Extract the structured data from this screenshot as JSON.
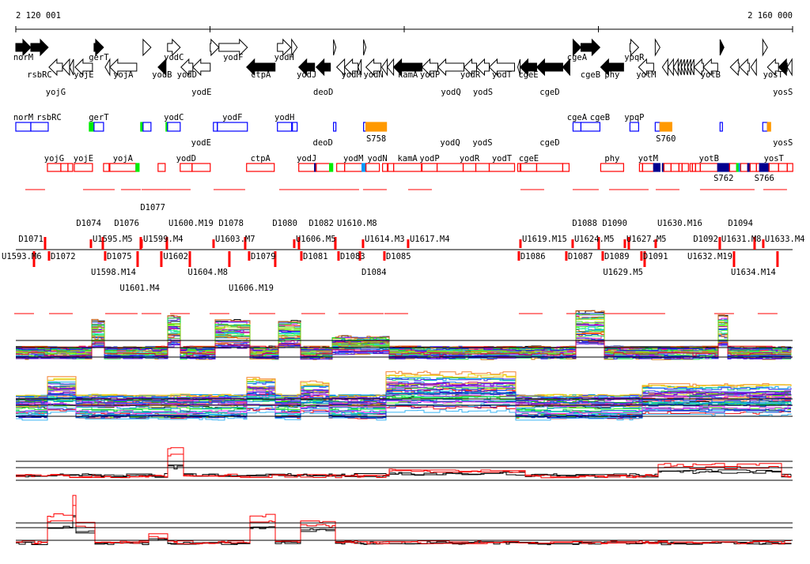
{
  "ruler": {
    "start_label": "2 120 001",
    "end_label": "2 160 000",
    "start": 2120001,
    "end": 2160000,
    "tick_step": 10000
  },
  "colors": {
    "blue_box": "#0000ff",
    "red_box": "#ff0000",
    "green": "#00ee00",
    "orange": "#ff9900",
    "navy": "#000090",
    "light_blue": "#0099ff",
    "probe": "#ff0000"
  },
  "genes": [
    {
      "name": "norM",
      "start": 2120000,
      "end": 2120773,
      "strand": "+",
      "filled": true
    },
    {
      "name": "rsbRC",
      "start": 2120773,
      "end": 2121669,
      "strand": "+",
      "filled": true
    },
    {
      "name": "gerT",
      "start": 2124029,
      "end": 2124518,
      "strand": "+",
      "filled": true
    },
    {
      "name": "",
      "start": 2126553,
      "end": 2126960,
      "strand": "+",
      "filled": false
    },
    {
      "name": "yodC",
      "start": 2127814,
      "end": 2128466,
      "strand": "+",
      "filled": false
    },
    {
      "name": "",
      "start": 2130012,
      "end": 2130460,
      "strand": "+",
      "filled": false
    },
    {
      "name": "yodF",
      "start": 2130460,
      "end": 2131925,
      "strand": "+",
      "filled": false
    },
    {
      "name": "yodH",
      "start": 2133472,
      "end": 2134164,
      "strand": "+",
      "filled": false
    },
    {
      "name": "",
      "start": 2134204,
      "end": 2134489,
      "strand": "+",
      "filled": false
    },
    {
      "name": "",
      "start": 2136361,
      "end": 2136484,
      "strand": "+",
      "filled": false
    },
    {
      "name": "",
      "start": 2137908,
      "end": 2138030,
      "strand": "+",
      "filled": false
    },
    {
      "name": "cgeA",
      "start": 2148694,
      "end": 2149101,
      "strand": "+",
      "filled": true
    },
    {
      "name": "cgeB",
      "start": 2149101,
      "end": 2150077,
      "strand": "+",
      "filled": true
    },
    {
      "name": "ypqR",
      "start": 2151624,
      "end": 2152072,
      "strand": "+",
      "filled": false
    },
    {
      "name": "",
      "start": 2152926,
      "end": 2153171,
      "strand": "+",
      "filled": false
    },
    {
      "name": "",
      "start": 2156264,
      "end": 2156467,
      "strand": "+",
      "filled": true
    },
    {
      "name": "",
      "start": 2158462,
      "end": 2158706,
      "strand": "+",
      "filled": false
    },
    {
      "name": "yojG",
      "start": 2121709,
      "end": 2122401,
      "strand": "-",
      "filled": false
    },
    {
      "name": "",
      "start": 2122401,
      "end": 2122768,
      "strand": "-",
      "filled": false
    },
    {
      "name": "",
      "start": 2122768,
      "end": 2122971,
      "strand": "-",
      "filled": false
    },
    {
      "name": "yojE",
      "start": 2123052,
      "end": 2123948,
      "strand": "-",
      "filled": false
    },
    {
      "name": "",
      "start": 2124599,
      "end": 2124843,
      "strand": "-",
      "filled": false
    },
    {
      "name": "yojA",
      "start": 2124843,
      "end": 2126227,
      "strand": "-",
      "filled": false
    },
    {
      "name": "yodB",
      "start": 2127326,
      "end": 2127733,
      "strand": "-",
      "filled": true
    },
    {
      "name": "yodD",
      "start": 2128506,
      "end": 2129117,
      "strand": "-",
      "filled": false
    },
    {
      "name": "yodE",
      "start": 2129117,
      "end": 2130012,
      "strand": "-",
      "filled": false
    },
    {
      "name": "ctpA",
      "start": 2131884,
      "end": 2133350,
      "strand": "-",
      "filled": true
    },
    {
      "name": "yodJ",
      "start": 2134571,
      "end": 2135385,
      "strand": "-",
      "filled": true
    },
    {
      "name": "deoD",
      "start": 2135466,
      "end": 2136199,
      "strand": "-",
      "filled": true
    },
    {
      "name": "",
      "start": 2136524,
      "end": 2136931,
      "strand": "-",
      "filled": false
    },
    {
      "name": "yodM",
      "start": 2136931,
      "end": 2137623,
      "strand": "-",
      "filled": false
    },
    {
      "name": "",
      "start": 2137623,
      "end": 2137786,
      "strand": "-",
      "filled": false
    },
    {
      "name": "yodN",
      "start": 2138030,
      "end": 2138803,
      "strand": "-",
      "filled": false
    },
    {
      "name": "",
      "start": 2138844,
      "end": 2139129,
      "strand": "-",
      "filled": false
    },
    {
      "name": "",
      "start": 2139129,
      "end": 2139455,
      "strand": "-",
      "filled": false
    },
    {
      "name": "kamA",
      "start": 2139455,
      "end": 2140920,
      "strand": "-",
      "filled": true
    },
    {
      "name": "yodP",
      "start": 2140920,
      "end": 2141734,
      "strand": "-",
      "filled": false
    },
    {
      "name": "yodQ",
      "start": 2141734,
      "end": 2143077,
      "strand": "-",
      "filled": false
    },
    {
      "name": "yodR",
      "start": 2143077,
      "end": 2143728,
      "strand": "-",
      "filled": false
    },
    {
      "name": "yodS",
      "start": 2143728,
      "end": 2144379,
      "strand": "-",
      "filled": false
    },
    {
      "name": "yodT",
      "start": 2144379,
      "end": 2145682,
      "strand": "-",
      "filled": false
    },
    {
      "name": "",
      "start": 2145845,
      "end": 2145967,
      "strand": "-",
      "filled": false
    },
    {
      "name": "cgeE",
      "start": 2145967,
      "end": 2146821,
      "strand": "-",
      "filled": true
    },
    {
      "name": "cgeD",
      "start": 2146821,
      "end": 2148164,
      "strand": "-",
      "filled": true
    },
    {
      "name": "",
      "start": 2148164,
      "end": 2148531,
      "strand": "-",
      "filled": true
    },
    {
      "name": "phy",
      "start": 2150118,
      "end": 2151298,
      "strand": "-",
      "filled": true
    },
    {
      "name": "yotM",
      "start": 2152072,
      "end": 2152845,
      "strand": "-",
      "filled": false
    },
    {
      "name": "",
      "start": 2153293,
      "end": 2153578,
      "strand": "-",
      "filled": false
    },
    {
      "name": "",
      "start": 2153578,
      "end": 2153864,
      "strand": "-",
      "filled": false
    },
    {
      "name": "",
      "start": 2153864,
      "end": 2154107,
      "strand": "-",
      "filled": false
    },
    {
      "name": "",
      "start": 2154107,
      "end": 2154269,
      "strand": "-",
      "filled": false
    },
    {
      "name": "",
      "start": 2154269,
      "end": 2154432,
      "strand": "-",
      "filled": false
    },
    {
      "name": "",
      "start": 2154432,
      "end": 2154595,
      "strand": "-",
      "filled": false
    },
    {
      "name": "",
      "start": 2154595,
      "end": 2154758,
      "strand": "-",
      "filled": false
    },
    {
      "name": "",
      "start": 2154758,
      "end": 2154921,
      "strand": "-",
      "filled": false
    },
    {
      "name": "",
      "start": 2154921,
      "end": 2155409,
      "strand": "-",
      "filled": false
    },
    {
      "name": "yotB",
      "start": 2155409,
      "end": 2156142,
      "strand": "-",
      "filled": false
    },
    {
      "name": "",
      "start": 2156793,
      "end": 2157241,
      "strand": "-",
      "filled": false
    },
    {
      "name": "",
      "start": 2157281,
      "end": 2157770,
      "strand": "-",
      "filled": false
    },
    {
      "name": "",
      "start": 2157851,
      "end": 2158136,
      "strand": "-",
      "filled": false
    },
    {
      "name": "yosT",
      "start": 2158706,
      "end": 2159276,
      "strand": "-",
      "filled": false
    },
    {
      "name": "yosS",
      "start": 2159276,
      "end": 2159724,
      "strand": "-",
      "filled": true
    },
    {
      "name": "",
      "start": 2159724,
      "end": 2159968,
      "strand": "-",
      "filled": false
    }
  ],
  "upper_features": [
    {
      "name": "norM",
      "start": 2120000,
      "end": 2120773,
      "color": "blue_box"
    },
    {
      "name": "rsbRC",
      "start": 2120773,
      "end": 2121669,
      "color": "blue_box"
    },
    {
      "name": "",
      "start": 2123785,
      "end": 2124029,
      "color": "green",
      "fill": true
    },
    {
      "name": "gerT",
      "start": 2124029,
      "end": 2124518,
      "color": "blue_box"
    },
    {
      "name": "",
      "start": 2126431,
      "end": 2126553,
      "color": "green",
      "fill": true
    },
    {
      "name": "",
      "start": 2126553,
      "end": 2126960,
      "color": "blue_box"
    },
    {
      "name": "",
      "start": 2127733,
      "end": 2127814,
      "color": "green",
      "fill": true
    },
    {
      "name": "yodC",
      "start": 2127814,
      "end": 2128466,
      "color": "blue_box"
    },
    {
      "name": "",
      "start": 2130175,
      "end": 2130379,
      "color": "blue_box"
    },
    {
      "name": "yodF",
      "start": 2130379,
      "end": 2131925,
      "color": "blue_box"
    },
    {
      "name": "yodH",
      "start": 2133472,
      "end": 2134204,
      "color": "blue_box"
    },
    {
      "name": "",
      "start": 2134245,
      "end": 2134489,
      "color": "blue_box"
    },
    {
      "name": "",
      "start": 2136361,
      "end": 2136484,
      "color": "blue_box"
    },
    {
      "name": "",
      "start": 2137908,
      "end": 2138030,
      "color": "blue_box"
    },
    {
      "name": "S758",
      "start": 2138030,
      "end": 2139088,
      "color": "orange",
      "fill": true,
      "below": true
    },
    {
      "name": "cgeA",
      "start": 2148694,
      "end": 2149101,
      "color": "blue_box"
    },
    {
      "name": "cgeB",
      "start": 2149101,
      "end": 2150077,
      "color": "blue_box"
    },
    {
      "name": "ypqP",
      "start": 2151624,
      "end": 2152072,
      "color": "blue_box"
    },
    {
      "name": "",
      "start": 2152926,
      "end": 2153171,
      "color": "blue_box"
    },
    {
      "name": "S760",
      "start": 2153171,
      "end": 2153781,
      "color": "orange",
      "fill": true,
      "below": true
    },
    {
      "name": "",
      "start": 2156264,
      "end": 2156386,
      "color": "blue_box"
    },
    {
      "name": "",
      "start": 2158462,
      "end": 2158706,
      "color": "blue_box"
    },
    {
      "name": "",
      "start": 2158706,
      "end": 2158869,
      "color": "orange",
      "fill": true
    }
  ],
  "lower_features": [
    {
      "name": "yojG",
      "start": 2121628,
      "end": 2122320,
      "color": "red_box"
    },
    {
      "name": "",
      "start": 2122320,
      "end": 2122686,
      "color": "red_box"
    },
    {
      "name": "",
      "start": 2122686,
      "end": 2122930,
      "color": "red_box"
    },
    {
      "name": "yojE",
      "start": 2123012,
      "end": 2123948,
      "color": "red_box"
    },
    {
      "name": "",
      "start": 2124518,
      "end": 2124803,
      "color": "red_box"
    },
    {
      "name": "yojA",
      "start": 2124843,
      "end": 2126186,
      "color": "red_box"
    },
    {
      "name": "",
      "start": 2126186,
      "end": 2126349,
      "color": "green",
      "fill": true
    },
    {
      "name": "",
      "start": 2127326,
      "end": 2127692,
      "color": "red_box"
    },
    {
      "name": "yodD",
      "start": 2128466,
      "end": 2129076,
      "color": "red_box"
    },
    {
      "name": "yodE",
      "start": 2129076,
      "end": 2130012,
      "color": "red_box"
    },
    {
      "name": "ctpA",
      "start": 2131884,
      "end": 2133309,
      "color": "red_box"
    },
    {
      "name": "yodJ",
      "start": 2134571,
      "end": 2135385,
      "color": "red_box"
    },
    {
      "name": "",
      "start": 2135385,
      "end": 2135466,
      "color": "navy",
      "fill": true
    },
    {
      "name": "deoD",
      "start": 2135466,
      "end": 2136158,
      "color": "red_box"
    },
    {
      "name": "",
      "start": 2136158,
      "end": 2136321,
      "color": "green",
      "fill": true
    },
    {
      "name": "",
      "start": 2136524,
      "end": 2136931,
      "color": "red_box"
    },
    {
      "name": "yodM",
      "start": 2136931,
      "end": 2137827,
      "color": "red_box"
    },
    {
      "name": "",
      "start": 2137827,
      "end": 2138030,
      "color": "light_blue",
      "fill": true
    },
    {
      "name": "yodN",
      "start": 2138030,
      "end": 2138722,
      "color": "red_box"
    },
    {
      "name": "",
      "start": 2138885,
      "end": 2139129,
      "color": "red_box"
    },
    {
      "name": "",
      "start": 2139170,
      "end": 2139455,
      "color": "red_box"
    },
    {
      "name": "kamA",
      "start": 2139455,
      "end": 2140879,
      "color": "red_box"
    },
    {
      "name": "yodP",
      "start": 2140920,
      "end": 2141693,
      "color": "red_box"
    },
    {
      "name": "yodQ",
      "start": 2141693,
      "end": 2143036,
      "color": "red_box"
    },
    {
      "name": "yodR",
      "start": 2143036,
      "end": 2143687,
      "color": "red_box"
    },
    {
      "name": "yodS",
      "start": 2143687,
      "end": 2144379,
      "color": "red_box"
    },
    {
      "name": "yodT",
      "start": 2144379,
      "end": 2145682,
      "color": "red_box"
    },
    {
      "name": "",
      "start": 2145845,
      "end": 2145967,
      "color": "red_box"
    },
    {
      "name": "cgeE",
      "start": 2146008,
      "end": 2146821,
      "color": "red_box"
    },
    {
      "name": "cgeD",
      "start": 2146821,
      "end": 2148164,
      "color": "red_box"
    },
    {
      "name": "",
      "start": 2148164,
      "end": 2148490,
      "color": "red_box"
    },
    {
      "name": "phy",
      "start": 2150118,
      "end": 2151298,
      "color": "red_box"
    },
    {
      "name": "",
      "start": 2152113,
      "end": 2152275,
      "color": "red_box"
    },
    {
      "name": "yotM",
      "start": 2152275,
      "end": 2152845,
      "color": "red_box"
    },
    {
      "name": "",
      "start": 2152845,
      "end": 2153171,
      "color": "navy",
      "fill": true
    },
    {
      "name": "",
      "start": 2153293,
      "end": 2153374,
      "color": "navy",
      "fill": true
    },
    {
      "name": "",
      "start": 2153374,
      "end": 2153741,
      "color": "red_box"
    },
    {
      "name": "",
      "start": 2153741,
      "end": 2154148,
      "color": "red_box"
    },
    {
      "name": "",
      "start": 2154148,
      "end": 2154310,
      "color": "red_box"
    },
    {
      "name": "",
      "start": 2154310,
      "end": 2154636,
      "color": "red_box"
    },
    {
      "name": "",
      "start": 2154717,
      "end": 2154839,
      "color": "red_box"
    },
    {
      "name": "",
      "start": 2154839,
      "end": 2155002,
      "color": "red_box"
    },
    {
      "name": "",
      "start": 2155002,
      "end": 2155246,
      "color": "red_box"
    },
    {
      "name": "yotB",
      "start": 2155246,
      "end": 2156142,
      "color": "red_box"
    },
    {
      "name": "S762",
      "start": 2156142,
      "end": 2156752,
      "color": "navy",
      "fill": true,
      "below": true
    },
    {
      "name": "",
      "start": 2156752,
      "end": 2157118,
      "color": "red_box"
    },
    {
      "name": "",
      "start": 2157118,
      "end": 2157241,
      "color": "green",
      "fill": true
    },
    {
      "name": "",
      "start": 2157241,
      "end": 2157322,
      "color": "light_blue",
      "fill": true
    },
    {
      "name": "",
      "start": 2157322,
      "end": 2157688,
      "color": "red_box"
    },
    {
      "name": "",
      "start": 2157688,
      "end": 2157810,
      "color": "navy",
      "fill": true
    },
    {
      "name": "",
      "start": 2157810,
      "end": 2158136,
      "color": "red_box"
    },
    {
      "name": "",
      "start": 2158136,
      "end": 2158299,
      "color": "red_box"
    },
    {
      "name": "S766",
      "start": 2158299,
      "end": 2158787,
      "color": "navy",
      "fill": true,
      "below": true
    },
    {
      "name": "yosT",
      "start": 2158787,
      "end": 2159276,
      "color": "red_box"
    },
    {
      "name": "yosS",
      "start": 2159276,
      "end": 2159724,
      "color": "red_box"
    },
    {
      "name": "",
      "start": 2159724,
      "end": 2160008,
      "color": "red_box"
    }
  ],
  "probes": {
    "upper_u": [
      {
        "label": "U1595.M5",
        "pos": 2123869
      },
      {
        "label": "U1599.M4",
        "pos": 2126476
      },
      {
        "label": "U1600.M19",
        "pos": 2127779
      },
      {
        "label": "U1603.M7",
        "pos": 2130183
      },
      {
        "label": "U1606.M5",
        "pos": 2134337
      },
      {
        "label": "U1610.M8",
        "pos": 2136455
      },
      {
        "label": "U1614.M3",
        "pos": 2137880
      },
      {
        "label": "U1617.M4",
        "pos": 2140202
      },
      {
        "label": "U1619.M15",
        "pos": 2145986
      },
      {
        "label": "U1624.M5",
        "pos": 2148674
      },
      {
        "label": "U1627.M5",
        "pos": 2151362
      },
      {
        "label": "U1630.M16",
        "pos": 2152951
      },
      {
        "label": "U1631.M8",
        "pos": 2156250
      },
      {
        "label": "U1633.M4",
        "pos": 2158490
      }
    ],
    "upper_d": [
      {
        "label": "D1071",
        "pos": 2121507
      },
      {
        "label": "D1074",
        "pos": 2124480
      },
      {
        "label": "D1076",
        "pos": 2126435
      },
      {
        "label": "D1077",
        "pos": 2127779
      },
      {
        "label": "D1078",
        "pos": 2131812
      },
      {
        "label": "D1080",
        "pos": 2134581
      },
      {
        "label": "D1082",
        "pos": 2136455
      },
      {
        "label": "D1088",
        "pos": 2150018
      },
      {
        "label": "D1090",
        "pos": 2151566
      },
      {
        "label": "D1092",
        "pos": 2156250
      },
      {
        "label": "D1094",
        "pos": 2158042
      }
    ],
    "lower_d": [
      {
        "label": "D1072",
        "pos": 2121711
      },
      {
        "label": "D1075",
        "pos": 2124602
      },
      {
        "label": "D1079",
        "pos": 2132015
      },
      {
        "label": "D1081",
        "pos": 2134704
      },
      {
        "label": "D1083",
        "pos": 2136618
      },
      {
        "label": "D1084",
        "pos": 2137718
      },
      {
        "label": "D1085",
        "pos": 2138980
      },
      {
        "label": "D1086",
        "pos": 2145904
      },
      {
        "label": "D1087",
        "pos": 2148348
      },
      {
        "label": "D1089",
        "pos": 2150222
      },
      {
        "label": "D1091",
        "pos": 2152217
      }
    ],
    "lower_u": [
      {
        "label": "U1593.M6",
        "pos": 2120937
      },
      {
        "label": "U1598.M14",
        "pos": 2126272
      },
      {
        "label": "U1601.M4",
        "pos": 2127494
      },
      {
        "label": "U1602",
        "pos": 2128961
      },
      {
        "label": "U1604.M8",
        "pos": 2130997
      },
      {
        "label": "U1606.M19",
        "pos": 2133359
      },
      {
        "label": "U1629.M5",
        "pos": 2152380
      },
      {
        "label": "U1632.M19",
        "pos": 2156983
      },
      {
        "label": "U1634.M14",
        "pos": 2159222
      }
    ]
  }
}
